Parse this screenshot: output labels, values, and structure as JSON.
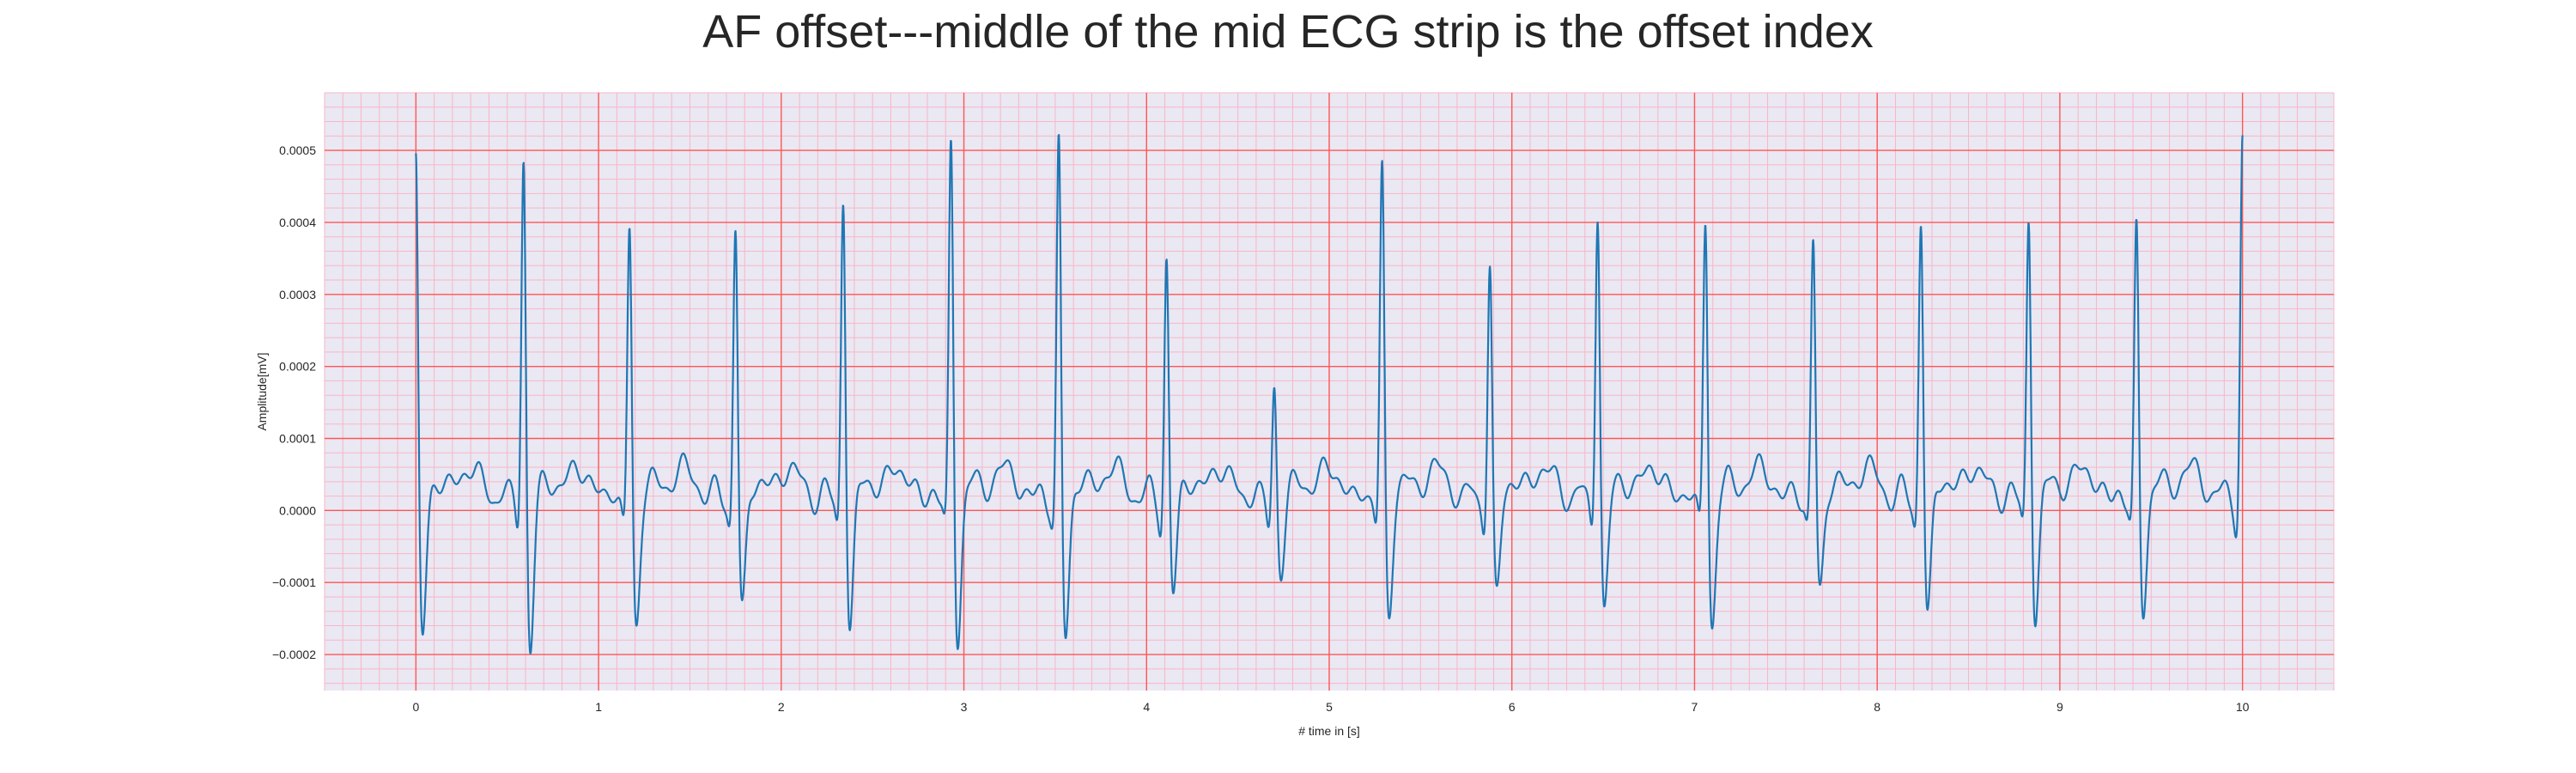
{
  "chart_data": {
    "type": "line",
    "title": "AF offset---middle of the mid ECG strip is the offset index",
    "xlabel": "# time in [s]",
    "ylabel": "Amplitude[mV]",
    "xlim": [
      -0.5,
      10.5
    ],
    "ylim": [
      -0.00025,
      0.00058
    ],
    "x_ticks": [
      0,
      1,
      2,
      3,
      4,
      5,
      6,
      7,
      8,
      9,
      10
    ],
    "x_tick_labels": [
      "0",
      "1",
      "2",
      "3",
      "4",
      "5",
      "6",
      "7",
      "8",
      "9",
      "10"
    ],
    "y_ticks": [
      -0.0002,
      -0.0001,
      0.0,
      0.0001,
      0.0002,
      0.0003,
      0.0004,
      0.0005
    ],
    "y_tick_labels": [
      "−0.0002",
      "−0.0001",
      "0.0000",
      "0.0001",
      "0.0002",
      "0.0003",
      "0.0004",
      "0.0005"
    ],
    "grid": true,
    "major_grid_color": "#ff5555",
    "minor_grid_color": "#f7b6c9",
    "background_color": "#eae8f2",
    "line_color": "#1f77b4",
    "series": [
      {
        "beats": [
          {
            "t": 0.0,
            "peak": 0.00053,
            "trough": -0.000195
          },
          {
            "t": 0.59,
            "peak": 0.000535,
            "trough": -0.00021
          },
          {
            "t": 1.17,
            "peak": 0.000425,
            "trough": -0.000175
          },
          {
            "t": 1.75,
            "peak": 0.000425,
            "trough": -0.000155
          },
          {
            "t": 2.34,
            "peak": 0.000475,
            "trough": -0.000178
          },
          {
            "t": 2.93,
            "peak": 0.000548,
            "trough": -0.000192
          },
          {
            "t": 3.52,
            "peak": 0.000545,
            "trough": -0.000192
          },
          {
            "t": 4.11,
            "peak": 0.000375,
            "trough": -0.00013
          },
          {
            "t": 4.7,
            "peak": 0.00019,
            "trough": -9.5e-05
          },
          {
            "t": 5.29,
            "peak": 0.000505,
            "trough": -0.00016
          },
          {
            "t": 5.88,
            "peak": 0.000365,
            "trough": -0.000135
          },
          {
            "t": 6.47,
            "peak": 0.00045,
            "trough": -0.000155
          },
          {
            "t": 7.06,
            "peak": 0.000438,
            "trough": -0.000175
          },
          {
            "t": 7.65,
            "peak": 0.000398,
            "trough": -0.000128
          },
          {
            "t": 8.24,
            "peak": 0.000438,
            "trough": -0.000162
          },
          {
            "t": 8.83,
            "peak": 0.00044,
            "trough": -0.000162
          },
          {
            "t": 9.42,
            "peak": 0.00042,
            "trough": -0.000152
          },
          {
            "t": 10.0,
            "peak": 0.000515,
            "trough": null
          }
        ],
        "baseline_min": -0.00014,
        "baseline_max": 9e-05
      }
    ]
  }
}
